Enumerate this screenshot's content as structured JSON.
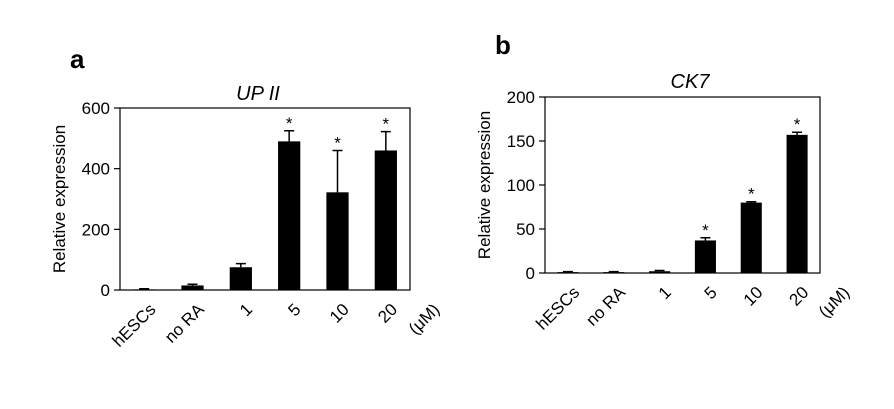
{
  "chart_data": [
    {
      "type": "bar",
      "panel": "a",
      "title": "UP II",
      "y_label": "Relative expression",
      "unit": "(μM)",
      "categories": [
        "hESCs",
        "no RA",
        "1",
        "5",
        "10",
        "20"
      ],
      "values": [
        2,
        15,
        75,
        490,
        322,
        460
      ],
      "errors": [
        2,
        4,
        12,
        35,
        138,
        62
      ],
      "annotations": [
        null,
        null,
        null,
        "*",
        "*",
        "*"
      ],
      "color": "#000000",
      "ylim": [
        0,
        600
      ],
      "yticks": [
        0,
        200,
        400,
        600
      ]
    },
    {
      "type": "bar",
      "panel": "b",
      "title": "CK7",
      "y_label": "Relative expression",
      "unit": "(μM)",
      "categories": [
        "hESCs",
        "no RA",
        "1",
        "5",
        "10",
        "20"
      ],
      "values": [
        1,
        1,
        2,
        37,
        80,
        157
      ],
      "errors": [
        0.5,
        0.5,
        0.8,
        3,
        1,
        3
      ],
      "annotations": [
        null,
        null,
        null,
        "*",
        "*",
        "*"
      ],
      "color": "#000000",
      "ylim": [
        0,
        200
      ],
      "yticks": [
        0,
        50,
        100,
        150,
        200
      ]
    }
  ]
}
